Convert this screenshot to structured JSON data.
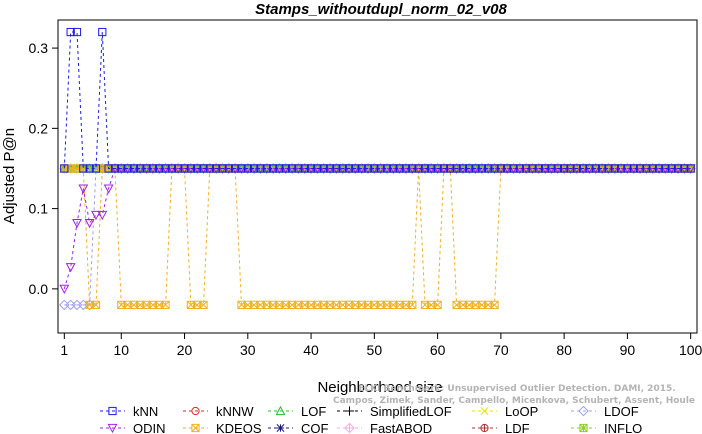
{
  "chart_data": {
    "type": "line",
    "title": "Stamps_withoutdupl_norm_02_v08",
    "xlabel": "Neighborhood size",
    "ylabel": "Adjusted P@n",
    "xlim": [
      0,
      101
    ],
    "ylim": [
      -0.055,
      0.335
    ],
    "xticks": [
      "1",
      "10",
      "20",
      "30",
      "40",
      "50",
      "60",
      "70",
      "80",
      "90",
      "100"
    ],
    "yticks": [
      "0.0",
      "0.1",
      "0.2",
      "0.3"
    ],
    "legend_position": "bottom",
    "series": [
      {
        "name": "kNN",
        "color": "#1a1ae6",
        "marker": "square",
        "points": [
          [
            1,
            0.15
          ],
          [
            2,
            0.32
          ],
          [
            3,
            0.32
          ],
          [
            4,
            0.15
          ],
          [
            5,
            0.15
          ],
          [
            6,
            0.15
          ],
          [
            7,
            0.32
          ],
          [
            8,
            0.15
          ],
          [
            9,
            0.15
          ],
          [
            10,
            0.15
          ],
          [
            100,
            0.15
          ]
        ]
      },
      {
        "name": "kNNW",
        "color": "#e62020",
        "marker": "circle",
        "points": [
          [
            1,
            0.15
          ],
          [
            100,
            0.15
          ]
        ]
      },
      {
        "name": "LOF",
        "color": "#20c020",
        "marker": "triangle-up",
        "points": [
          [
            1,
            0.15
          ],
          [
            100,
            0.15
          ]
        ]
      },
      {
        "name": "SimplifiedLOF",
        "color": "#000000",
        "marker": "plus",
        "points": [
          [
            1,
            0.15
          ],
          [
            100,
            0.15
          ]
        ]
      },
      {
        "name": "LoOP",
        "color": "#e6e600",
        "marker": "x",
        "points": [
          [
            1,
            0.15
          ],
          [
            100,
            0.15
          ]
        ]
      },
      {
        "name": "LDOF",
        "color": "#a0a0e6",
        "marker": "diamond",
        "points": [
          [
            1,
            -0.02
          ],
          [
            2,
            -0.02
          ],
          [
            3,
            -0.02
          ],
          [
            4,
            -0.02
          ],
          [
            5,
            -0.02
          ],
          [
            6,
            0.15
          ],
          [
            7,
            0.15
          ],
          [
            100,
            0.15
          ]
        ]
      },
      {
        "name": "ODIN",
        "color": "#a020e6",
        "marker": "triangle-down",
        "points": [
          [
            1,
            0.0
          ],
          [
            2,
            0.027
          ],
          [
            3,
            0.082
          ],
          [
            4,
            0.125
          ],
          [
            5,
            0.082
          ],
          [
            6,
            0.092
          ],
          [
            7,
            0.092
          ],
          [
            8,
            0.125
          ],
          [
            9,
            0.15
          ],
          [
            10,
            0.15
          ],
          [
            100,
            0.15
          ]
        ]
      },
      {
        "name": "KDEOS",
        "color": "#f0b020",
        "marker": "boxed-x",
        "points": [
          [
            1,
            0.15
          ],
          [
            2,
            0.15
          ],
          [
            3,
            0.15
          ],
          [
            4,
            0.15
          ],
          [
            5,
            -0.02
          ],
          [
            6,
            -0.02
          ],
          [
            7,
            0.15
          ],
          [
            8,
            0.15
          ],
          [
            9,
            0.15
          ],
          [
            10,
            -0.02
          ],
          [
            11,
            -0.02
          ],
          [
            12,
            -0.02
          ],
          [
            13,
            -0.02
          ],
          [
            14,
            -0.02
          ],
          [
            15,
            -0.02
          ],
          [
            16,
            -0.02
          ],
          [
            17,
            -0.02
          ],
          [
            18,
            0.15
          ],
          [
            19,
            0.15
          ],
          [
            20,
            0.15
          ],
          [
            21,
            -0.02
          ],
          [
            22,
            -0.02
          ],
          [
            23,
            -0.02
          ],
          [
            24,
            0.15
          ],
          [
            25,
            0.15
          ],
          [
            26,
            0.15
          ],
          [
            27,
            0.15
          ],
          [
            28,
            0.15
          ],
          [
            29,
            -0.02
          ],
          [
            30,
            -0.02
          ],
          [
            31,
            -0.02
          ],
          [
            32,
            -0.02
          ],
          [
            33,
            -0.02
          ],
          [
            34,
            -0.02
          ],
          [
            35,
            -0.02
          ],
          [
            36,
            -0.02
          ],
          [
            37,
            -0.02
          ],
          [
            38,
            -0.02
          ],
          [
            39,
            -0.02
          ],
          [
            40,
            -0.02
          ],
          [
            41,
            -0.02
          ],
          [
            42,
            -0.02
          ],
          [
            43,
            -0.02
          ],
          [
            44,
            -0.02
          ],
          [
            45,
            -0.02
          ],
          [
            46,
            -0.02
          ],
          [
            47,
            -0.02
          ],
          [
            48,
            -0.02
          ],
          [
            49,
            -0.02
          ],
          [
            50,
            -0.02
          ],
          [
            51,
            -0.02
          ],
          [
            52,
            -0.02
          ],
          [
            53,
            -0.02
          ],
          [
            54,
            -0.02
          ],
          [
            55,
            -0.02
          ],
          [
            56,
            -0.02
          ],
          [
            57,
            0.15
          ],
          [
            58,
            -0.02
          ],
          [
            59,
            -0.02
          ],
          [
            60,
            -0.02
          ],
          [
            61,
            0.15
          ],
          [
            62,
            0.15
          ],
          [
            63,
            -0.02
          ],
          [
            64,
            -0.02
          ],
          [
            65,
            -0.02
          ],
          [
            66,
            -0.02
          ],
          [
            67,
            -0.02
          ],
          [
            68,
            -0.02
          ],
          [
            69,
            -0.02
          ],
          [
            70,
            0.15
          ],
          [
            71,
            0.15
          ],
          [
            100,
            0.15
          ]
        ]
      },
      {
        "name": "LDF",
        "color": "#b03030",
        "marker": "circle-plus",
        "points": [
          [
            1,
            0.15
          ],
          [
            100,
            0.15
          ]
        ]
      },
      {
        "name": "COF",
        "color": "#1a1a80",
        "marker": "asterisk",
        "points": [
          [
            1,
            0.15
          ],
          [
            100,
            0.15
          ]
        ]
      },
      {
        "name": "FastABOD",
        "color": "#f0b0e0",
        "marker": "diamond-plus",
        "points": [
          [
            1,
            0.15
          ],
          [
            100,
            0.15
          ]
        ]
      },
      {
        "name": "INFLO",
        "color": "#90d020",
        "marker": "boxed-asterisk",
        "points": [
          [
            1,
            0.15
          ],
          [
            100,
            0.15
          ]
        ]
      }
    ],
    "legend_order": [
      "kNN",
      "kNNW",
      "LOF",
      "SimplifiedLOF",
      "LoOP",
      "LDOF",
      "ODIN",
      "KDEOS",
      "COF",
      "FastABOD",
      "LDF",
      "INFLO"
    ]
  },
  "watermark": {
    "line1": "ELKI Benchmark: Unsupervised Outlier Detection. DAMI, 2015.",
    "line2": "Campos, Zimek, Sander, Campello, Micenkova, Schubert, Assent, Houle"
  }
}
